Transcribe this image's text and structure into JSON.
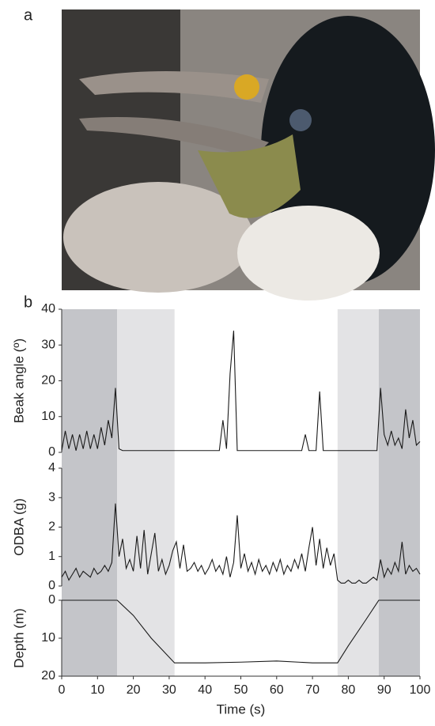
{
  "figure": {
    "panel_labels": [
      "a",
      "b"
    ]
  },
  "chart_data": [
    {
      "type": "line",
      "ylabel": "Beak angle (º)",
      "color": "#1a1a1a",
      "xlim": [
        0,
        100
      ],
      "ylim": [
        0,
        40
      ],
      "yticks": [
        0,
        10,
        20,
        30,
        40
      ],
      "bands": [
        {
          "from": 0,
          "to": 15.5,
          "color": "#c4c5c9"
        },
        {
          "from": 15.5,
          "to": 31.5,
          "color": "#e3e3e5"
        },
        {
          "from": 77,
          "to": 88.5,
          "color": "#e3e3e5"
        },
        {
          "from": 88.5,
          "to": 100,
          "color": "#c4c5c9"
        }
      ],
      "x": [
        0,
        1,
        2,
        3,
        4,
        5,
        6,
        7,
        8,
        9,
        10,
        11,
        12,
        13,
        14,
        15,
        16,
        17,
        18,
        19,
        20,
        21,
        22,
        23,
        24,
        25,
        26,
        27,
        28,
        29,
        30,
        31,
        32,
        33,
        34,
        35,
        36,
        37,
        38,
        39,
        40,
        41,
        42,
        43,
        44,
        45,
        46,
        47,
        48,
        49,
        50,
        51,
        52,
        53,
        54,
        55,
        56,
        57,
        58,
        59,
        60,
        61,
        62,
        63,
        64,
        65,
        66,
        67,
        68,
        69,
        70,
        71,
        72,
        73,
        74,
        75,
        76,
        77,
        78,
        79,
        80,
        81,
        82,
        83,
        84,
        85,
        86,
        87,
        88,
        89,
        90,
        91,
        92,
        93,
        94,
        95,
        96,
        97,
        98,
        99,
        100
      ],
      "values": [
        0.5,
        6,
        1,
        5,
        0.5,
        5,
        1,
        6,
        1,
        5,
        1,
        7,
        2,
        9,
        4,
        18,
        1,
        0.5,
        0.5,
        0.5,
        0.5,
        0.5,
        0.5,
        0.5,
        0.5,
        0.5,
        0.5,
        0.5,
        0.5,
        0.5,
        0.5,
        0.5,
        0.5,
        0.5,
        0.5,
        0.5,
        0.5,
        0.5,
        0.5,
        0.5,
        0.5,
        0.5,
        0.5,
        0.5,
        0.5,
        9,
        1,
        22,
        34,
        0.5,
        0.5,
        0.5,
        0.5,
        0.5,
        0.5,
        0.5,
        0.5,
        0.5,
        0.5,
        0.5,
        0.5,
        0.5,
        0.5,
        0.5,
        0.5,
        0.5,
        0.5,
        0.5,
        5,
        0.5,
        0.5,
        0.5,
        17,
        0.5,
        0.5,
        0.5,
        0.5,
        0.5,
        0.5,
        0.5,
        0.5,
        0.5,
        0.5,
        0.5,
        0.5,
        0.5,
        0.5,
        0.5,
        0.5,
        18,
        5,
        2,
        6,
        2,
        4,
        1,
        12,
        4,
        9,
        2,
        3
      ]
    },
    {
      "type": "line",
      "ylabel": "ODBA (g)",
      "color": "#1a1a1a",
      "xlim": [
        0,
        100
      ],
      "ylim": [
        0,
        4
      ],
      "yticks": [
        0,
        1,
        2,
        3,
        4
      ],
      "x": [
        0,
        1,
        2,
        3,
        4,
        5,
        6,
        7,
        8,
        9,
        10,
        11,
        12,
        13,
        14,
        15,
        16,
        17,
        18,
        19,
        20,
        21,
        22,
        23,
        24,
        25,
        26,
        27,
        28,
        29,
        30,
        31,
        32,
        33,
        34,
        35,
        36,
        37,
        38,
        39,
        40,
        41,
        42,
        43,
        44,
        45,
        46,
        47,
        48,
        49,
        50,
        51,
        52,
        53,
        54,
        55,
        56,
        57,
        58,
        59,
        60,
        61,
        62,
        63,
        64,
        65,
        66,
        67,
        68,
        69,
        70,
        71,
        72,
        73,
        74,
        75,
        76,
        77,
        78,
        79,
        80,
        81,
        82,
        83,
        84,
        85,
        86,
        87,
        88,
        89,
        90,
        91,
        92,
        93,
        94,
        95,
        96,
        97,
        98,
        99,
        100
      ],
      "values": [
        0.3,
        0.5,
        0.2,
        0.4,
        0.6,
        0.3,
        0.5,
        0.4,
        0.3,
        0.6,
        0.4,
        0.5,
        0.7,
        0.5,
        0.8,
        2.8,
        1.0,
        1.6,
        0.6,
        0.9,
        0.5,
        1.7,
        0.6,
        1.9,
        0.4,
        1.1,
        1.8,
        0.5,
        0.9,
        0.4,
        0.7,
        1.2,
        1.5,
        0.6,
        1.4,
        0.5,
        0.6,
        0.8,
        0.5,
        0.7,
        0.4,
        0.6,
        0.9,
        0.5,
        0.7,
        0.4,
        1.0,
        0.3,
        0.8,
        2.4,
        0.6,
        1.1,
        0.5,
        0.8,
        0.4,
        0.9,
        0.5,
        0.7,
        0.4,
        0.8,
        0.5,
        0.9,
        0.4,
        0.7,
        0.5,
        0.9,
        0.6,
        1.1,
        0.5,
        1.3,
        2.0,
        0.7,
        1.6,
        0.6,
        1.3,
        0.7,
        1.1,
        0.2,
        0.1,
        0.1,
        0.2,
        0.1,
        0.1,
        0.2,
        0.1,
        0.1,
        0.2,
        0.3,
        0.2,
        0.9,
        0.3,
        0.6,
        0.4,
        0.8,
        0.5,
        1.5,
        0.4,
        0.7,
        0.5,
        0.6,
        0.4
      ]
    },
    {
      "type": "line",
      "ylabel": "Depth (m)",
      "xlabel": "Time (s)",
      "color": "#1a1a1a",
      "xlim": [
        0,
        100
      ],
      "xticks": [
        0,
        10,
        20,
        30,
        40,
        50,
        60,
        70,
        80,
        90,
        100
      ],
      "ylim": [
        20,
        0
      ],
      "yticks": [
        0,
        10,
        20
      ],
      "x": [
        0,
        15.5,
        20,
        25,
        31.5,
        40,
        50,
        60,
        70,
        77,
        80,
        85,
        88.5,
        100
      ],
      "values": [
        0,
        0,
        4,
        10,
        16.5,
        16.5,
        16.3,
        16.0,
        16.5,
        16.5,
        12,
        5,
        0,
        0
      ]
    }
  ]
}
